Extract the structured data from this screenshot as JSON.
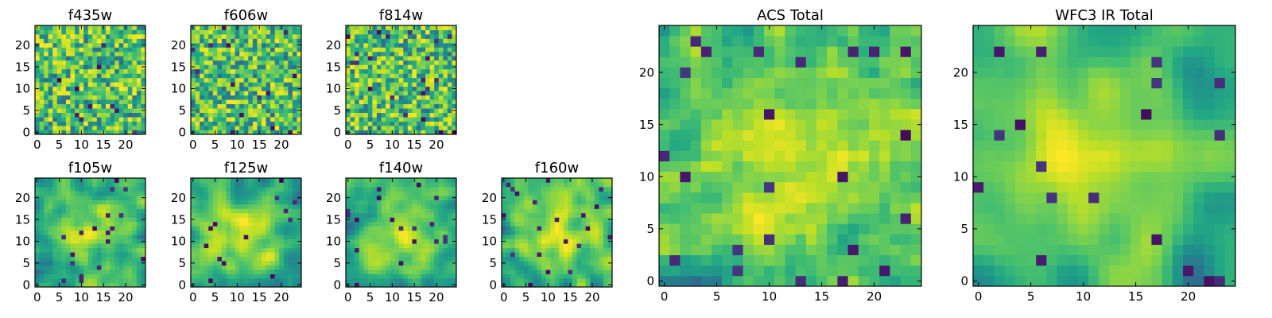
{
  "chart_data": [
    {
      "type": "heatmap",
      "title": "f435w",
      "xticks": [
        0,
        5,
        10,
        15,
        20
      ],
      "yticks": [
        0,
        5,
        10,
        15,
        20
      ],
      "xlim": [
        -0.5,
        24.5
      ],
      "ylim": [
        -0.5,
        24.5
      ],
      "grid_size": 25,
      "colormap": "viridis",
      "texture": "noisy-fine",
      "seed": 11
    },
    {
      "type": "heatmap",
      "title": "f606w",
      "xticks": [
        0,
        5,
        10,
        15,
        20
      ],
      "yticks": [
        0,
        5,
        10,
        15,
        20
      ],
      "xlim": [
        -0.5,
        24.5
      ],
      "ylim": [
        -0.5,
        24.5
      ],
      "grid_size": 25,
      "colormap": "viridis",
      "texture": "noisy-fine",
      "seed": 23
    },
    {
      "type": "heatmap",
      "title": "f814w",
      "xticks": [
        0,
        5,
        10,
        15,
        20
      ],
      "yticks": [
        0,
        5,
        10,
        15,
        20
      ],
      "xlim": [
        -0.5,
        24.5
      ],
      "ylim": [
        -0.5,
        24.5
      ],
      "grid_size": 25,
      "colormap": "viridis",
      "texture": "noisy-fine",
      "seed": 37
    },
    {
      "type": "heatmap",
      "title": "f105w",
      "xticks": [
        0,
        5,
        10,
        15,
        20
      ],
      "yticks": [
        0,
        5,
        10,
        15,
        20
      ],
      "xlim": [
        -0.5,
        24.5
      ],
      "ylim": [
        -0.5,
        24.5
      ],
      "grid_size": 25,
      "colormap": "viridis",
      "texture": "smooth",
      "seed": 41
    },
    {
      "type": "heatmap",
      "title": "f125w",
      "xticks": [
        0,
        5,
        10,
        15,
        20
      ],
      "yticks": [
        0,
        5,
        10,
        15,
        20
      ],
      "xlim": [
        -0.5,
        24.5
      ],
      "ylim": [
        -0.5,
        24.5
      ],
      "grid_size": 25,
      "colormap": "viridis",
      "texture": "smooth",
      "seed": 53
    },
    {
      "type": "heatmap",
      "title": "f140w",
      "xticks": [
        0,
        5,
        10,
        15,
        20
      ],
      "yticks": [
        0,
        5,
        10,
        15,
        20
      ],
      "xlim": [
        -0.5,
        24.5
      ],
      "ylim": [
        -0.5,
        24.5
      ],
      "grid_size": 25,
      "colormap": "viridis",
      "texture": "smooth",
      "seed": 67
    },
    {
      "type": "heatmap",
      "title": "f160w",
      "xticks": [
        0,
        5,
        10,
        15,
        20
      ],
      "yticks": [
        0,
        5,
        10,
        15,
        20
      ],
      "xlim": [
        -0.5,
        24.5
      ],
      "ylim": [
        -0.5,
        24.5
      ],
      "grid_size": 25,
      "colormap": "viridis",
      "texture": "smooth",
      "seed": 79
    },
    {
      "type": "heatmap",
      "title": "ACS Total",
      "xticks": [
        0,
        5,
        10,
        15,
        20
      ],
      "yticks": [
        0,
        5,
        10,
        15,
        20
      ],
      "xlim": [
        -0.5,
        24.5
      ],
      "ylim": [
        -0.5,
        24.5
      ],
      "grid_size": 25,
      "colormap": "viridis",
      "texture": "blocky",
      "seed": 97
    },
    {
      "type": "heatmap",
      "title": "WFC3 IR Total",
      "xticks": [
        0,
        5,
        10,
        15,
        20
      ],
      "yticks": [
        0,
        5,
        10,
        15,
        20
      ],
      "xlim": [
        -0.5,
        24.5
      ],
      "ylim": [
        -0.5,
        24.5
      ],
      "grid_size": 25,
      "colormap": "viridis",
      "texture": "smooth-blocky",
      "seed": 131
    }
  ]
}
